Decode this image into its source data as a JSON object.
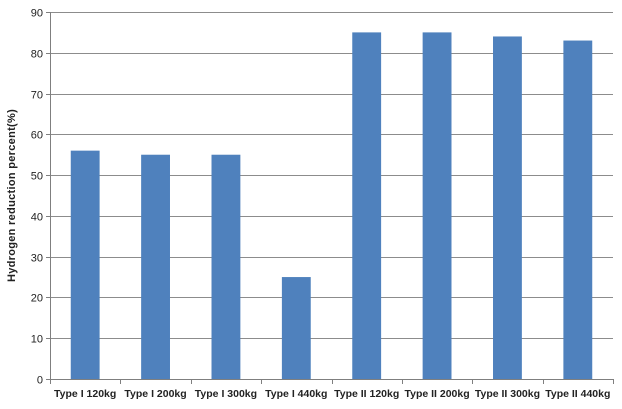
{
  "chart_data": {
    "type": "bar",
    "categories": [
      "Type I 120kg",
      "Type I 200kg",
      "Type I 300kg",
      "Type I 440kg",
      "Type II 120kg",
      "Type II 200kg",
      "Type II 300kg",
      "Type II 440kg"
    ],
    "values": [
      56,
      55,
      55,
      25,
      85,
      85,
      84,
      83
    ],
    "ylabel": "Hydrogen reduction percent(%)",
    "ylim": [
      0,
      90
    ],
    "yticks": [
      0,
      10,
      20,
      30,
      40,
      50,
      60,
      70,
      80,
      90
    ],
    "grid": true,
    "legend": "none",
    "bar_color": "#4F81BD",
    "grid_color": "#8C8C8C"
  }
}
